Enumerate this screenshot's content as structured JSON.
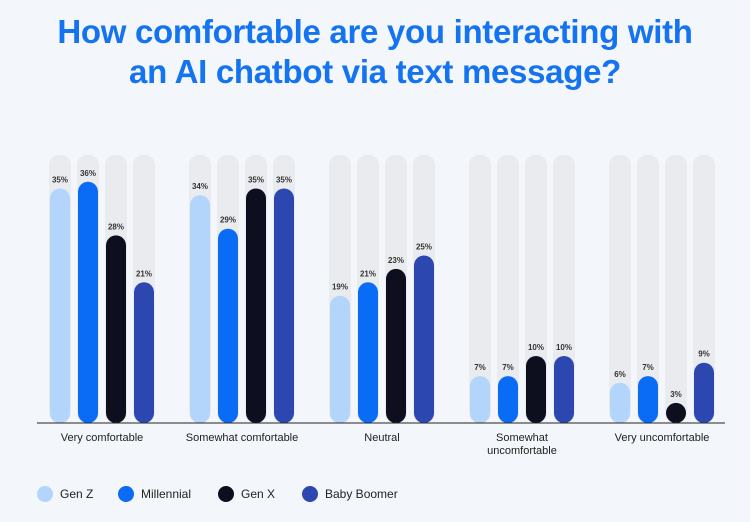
{
  "chart_data": {
    "type": "bar",
    "title": "How comfortable are you interacting with an AI chatbot via text message?",
    "categories": [
      "Very comfortable",
      "Somewhat comfortable",
      "Neutral",
      "Somewhat uncomfortable",
      "Very uncomfortable"
    ],
    "ylim": [
      0,
      40
    ],
    "series": [
      {
        "name": "Gen Z",
        "color": "#b3d4fb",
        "values": [
          35,
          34,
          19,
          7,
          6
        ],
        "value_labels": [
          "35%",
          "34%",
          "19%",
          "7%",
          "6%"
        ]
      },
      {
        "name": "Millennial",
        "color": "#0a6cf5",
        "values": [
          36,
          29,
          21,
          7,
          7
        ],
        "value_labels": [
          "36%",
          "29%",
          "21%",
          "7%",
          "7%"
        ]
      },
      {
        "name": "Gen X",
        "color": "#0d0f1f",
        "values": [
          28,
          35,
          23,
          10,
          3
        ],
        "value_labels": [
          "28%",
          "35%",
          "23%",
          "10%",
          "3%"
        ]
      },
      {
        "name": "Baby Boomer",
        "color": "#2c48b0",
        "values": [
          21,
          35,
          25,
          10,
          9
        ],
        "value_labels": [
          "21%",
          "35%",
          "25%",
          "10%",
          "9%"
        ]
      }
    ]
  }
}
